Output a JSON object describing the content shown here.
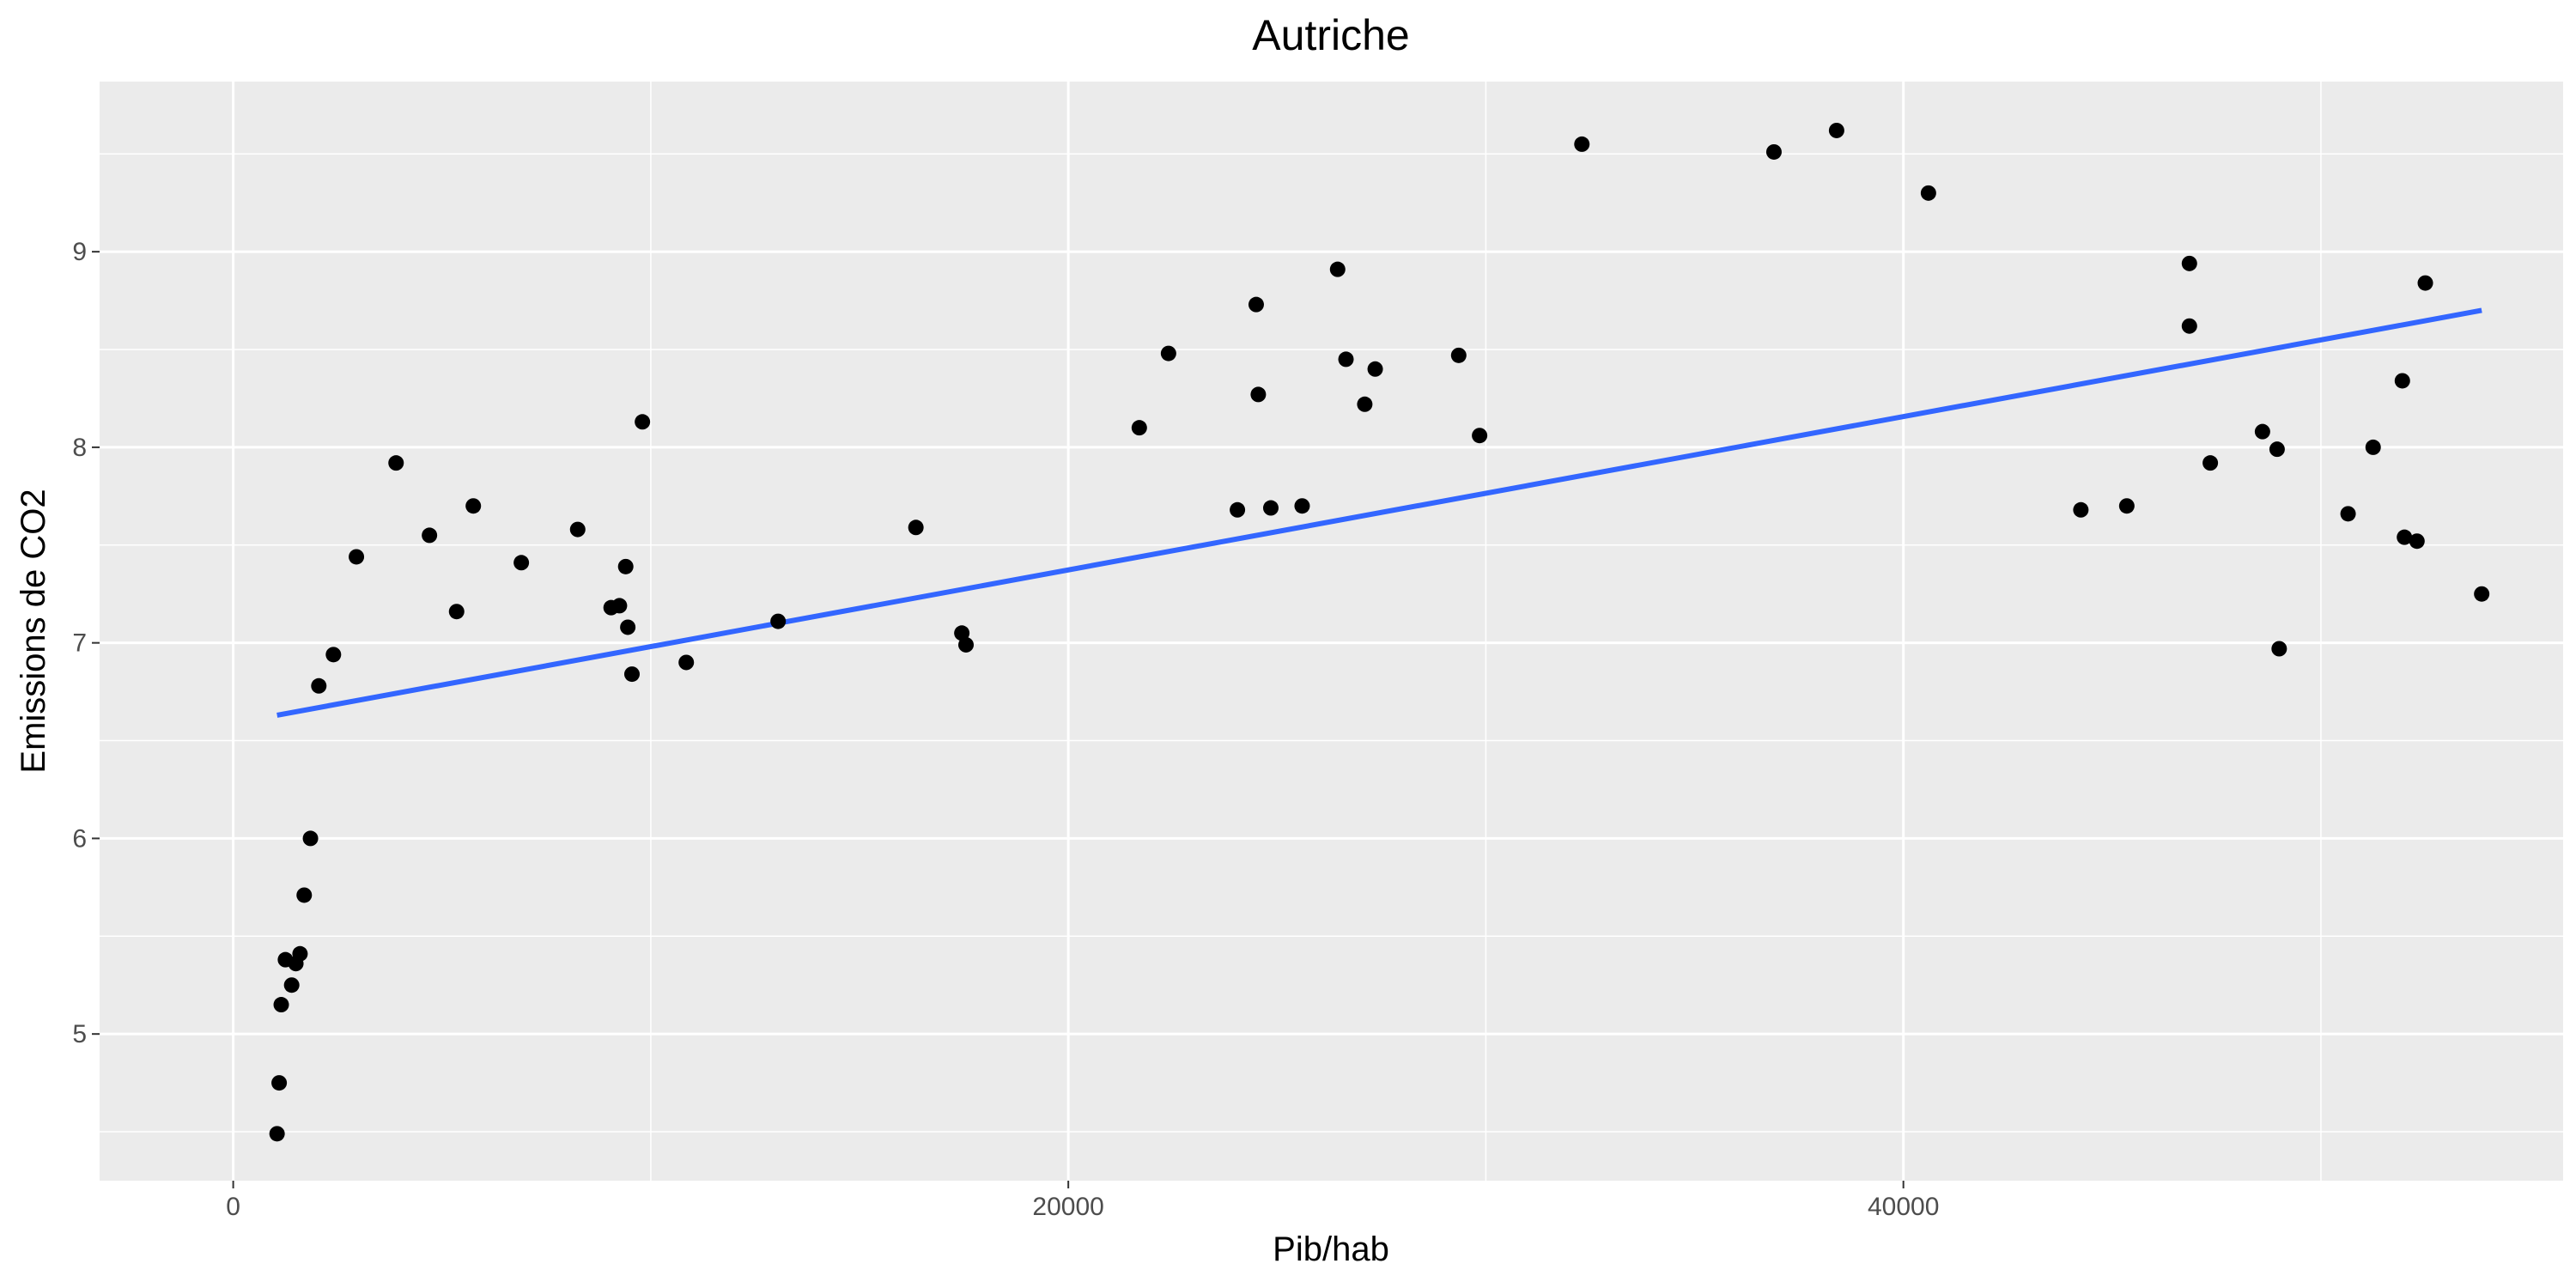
{
  "chart_data": {
    "type": "scatter",
    "title": "Autriche",
    "xlabel": "Pib/hab",
    "ylabel": "Emissions de CO2",
    "xlim": [
      -3200,
      55800
    ],
    "ylim": [
      4.25,
      9.87
    ],
    "x_ticks": [
      0,
      20000,
      40000
    ],
    "x_tick_labels": [
      "0",
      "20000",
      "40000"
    ],
    "y_ticks": [
      5,
      6,
      7,
      8,
      9
    ],
    "y_tick_labels": [
      "5",
      "6",
      "7",
      "8",
      "9"
    ],
    "grid": true,
    "legend": "none",
    "colors": {
      "panel": "#ebebeb",
      "grid": "#ffffff",
      "points": "#000000",
      "fit_line": "#3366ff"
    },
    "series": [
      {
        "points": [
          [
            1050,
            4.49
          ],
          [
            1100,
            4.75
          ],
          [
            1150,
            5.15
          ],
          [
            1250,
            5.38
          ],
          [
            1400,
            5.25
          ],
          [
            1500,
            5.36
          ],
          [
            1600,
            5.41
          ],
          [
            1700,
            5.71
          ],
          [
            1850,
            6.0
          ],
          [
            2050,
            6.78
          ],
          [
            2400,
            6.94
          ],
          [
            2950,
            7.44
          ],
          [
            3900,
            7.92
          ],
          [
            4700,
            7.55
          ],
          [
            5350,
            7.16
          ],
          [
            5750,
            7.7
          ],
          [
            6900,
            7.41
          ],
          [
            8250,
            7.58
          ],
          [
            9050,
            7.18
          ],
          [
            9250,
            7.19
          ],
          [
            9400,
            7.39
          ],
          [
            9450,
            7.08
          ],
          [
            9550,
            6.84
          ],
          [
            9800,
            8.13
          ],
          [
            10850,
            6.9
          ],
          [
            13050,
            7.11
          ],
          [
            16350,
            7.59
          ],
          [
            17450,
            7.05
          ],
          [
            17550,
            6.99
          ],
          [
            21700,
            8.1
          ],
          [
            22400,
            8.48
          ],
          [
            24050,
            7.68
          ],
          [
            24500,
            8.73
          ],
          [
            24550,
            8.27
          ],
          [
            24850,
            7.69
          ],
          [
            25600,
            7.7
          ],
          [
            26450,
            8.91
          ],
          [
            26650,
            8.45
          ],
          [
            27100,
            8.22
          ],
          [
            27350,
            8.4
          ],
          [
            29350,
            8.47
          ],
          [
            29850,
            8.06
          ],
          [
            32300,
            9.55
          ],
          [
            36900,
            9.51
          ],
          [
            38400,
            9.62
          ],
          [
            40600,
            9.3
          ],
          [
            44250,
            7.68
          ],
          [
            45350,
            7.7
          ],
          [
            46850,
            8.94
          ],
          [
            46850,
            8.62
          ],
          [
            47350,
            7.92
          ],
          [
            48600,
            8.08
          ],
          [
            48950,
            7.99
          ],
          [
            49000,
            6.97
          ],
          [
            50650,
            7.66
          ],
          [
            51250,
            8.0
          ],
          [
            51950,
            8.34
          ],
          [
            52000,
            7.54
          ],
          [
            52300,
            7.52
          ],
          [
            52500,
            8.84
          ],
          [
            53850,
            7.25
          ]
        ]
      }
    ],
    "fit_line": {
      "method": "lm",
      "x": [
        1050,
        53850
      ],
      "y": [
        6.63,
        8.7
      ]
    }
  }
}
